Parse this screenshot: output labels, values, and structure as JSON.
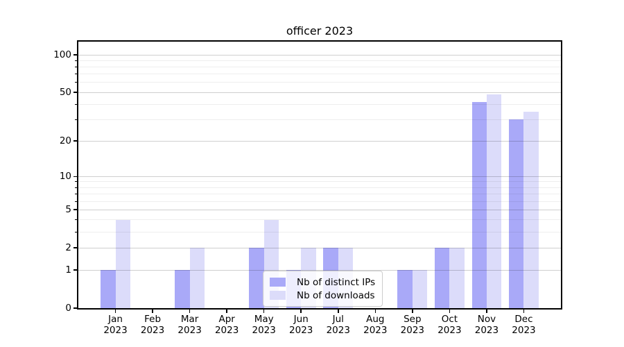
{
  "chart_data": {
    "type": "bar",
    "title": "officer 2023",
    "year_label": "2023",
    "categories": [
      "Jan",
      "Feb",
      "Mar",
      "Apr",
      "May",
      "Jun",
      "Jul",
      "Aug",
      "Sep",
      "Oct",
      "Nov",
      "Dec"
    ],
    "series": [
      {
        "name": "Nb of distinct IPs",
        "color": "#a9a9f8",
        "values": [
          1,
          0,
          1,
          0,
          2,
          1,
          2,
          0,
          1,
          2,
          42,
          30
        ]
      },
      {
        "name": "Nb of downloads",
        "color": "#dcdcfa",
        "values": [
          4,
          0,
          2,
          0,
          4,
          2,
          2,
          0,
          1,
          2,
          48,
          35
        ]
      }
    ],
    "yscale": "log10(1+x)",
    "ylim": [
      0,
      128
    ],
    "ytick_labels": [
      0,
      1,
      2,
      5,
      10,
      20,
      50,
      100
    ],
    "minor_gridline_values": [
      3,
      4,
      6,
      7,
      8,
      9,
      30,
      40,
      60,
      70,
      80,
      90
    ],
    "grid": true,
    "legend_position": "lower-center-inside",
    "colors": {
      "bar_distinct_ips": "#a9a9f8",
      "bar_downloads": "#dcdcfa",
      "major_grid": "#cfcfcf",
      "minor_grid": "#ededed",
      "axis": "#000000",
      "background": "#ffffff"
    }
  }
}
